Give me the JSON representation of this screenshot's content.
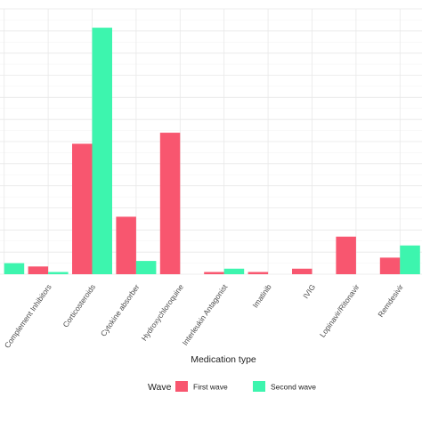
{
  "chart_data": {
    "type": "bar",
    "xlabel": "Medication type",
    "ylabel": "",
    "title": "",
    "grid": true,
    "legend_position": "bottom",
    "legend_title": "Wave",
    "categories": [
      "",
      "Complement Inhibitors",
      "Corticosteroids",
      "Cytokine absorber",
      "Hydroxychloroquine",
      "Interleukin Antagonist",
      "Imatinib",
      "IVIG",
      "Lopinavir/Ritonavir",
      "Remdesivir"
    ],
    "series": [
      {
        "name": "First wave",
        "color": "#F8566F",
        "values": [
          0.0,
          0.7,
          11.8,
          5.2,
          12.8,
          0.2,
          0.2,
          0.5,
          3.4,
          1.5
        ]
      },
      {
        "name": "Second wave",
        "color": "#3DF5AE",
        "values": [
          1.0,
          0.2,
          22.3,
          1.2,
          0.0,
          0.5,
          0.0,
          0.0,
          0.0,
          2.6
        ]
      }
    ],
    "ylim": [
      0,
      24
    ],
    "yticks": [
      0,
      2,
      4,
      6,
      8,
      10,
      12,
      14,
      16,
      18,
      20,
      22,
      24
    ]
  }
}
